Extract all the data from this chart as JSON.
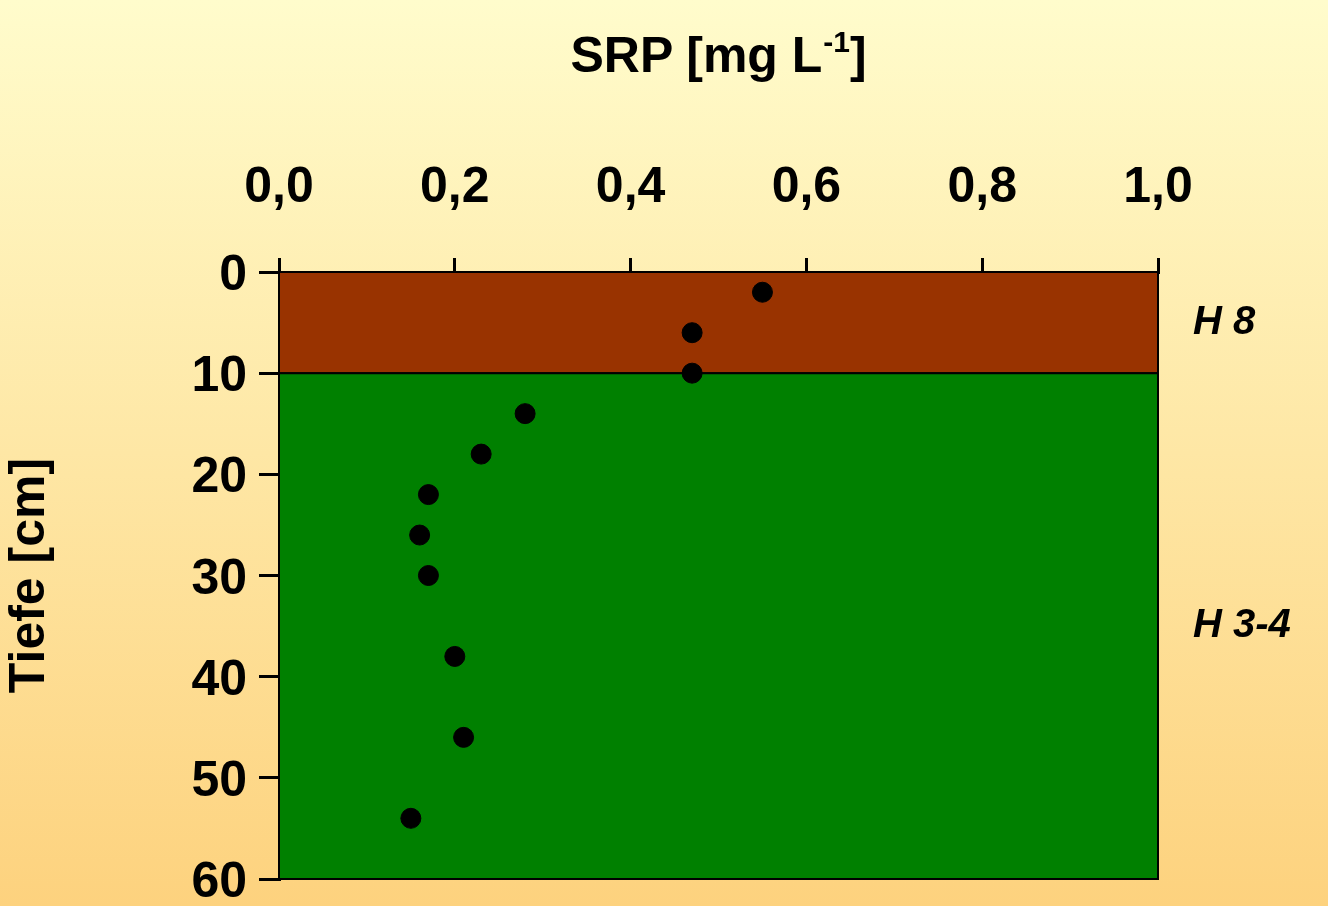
{
  "chart_data": {
    "type": "scatter",
    "xlabel": "SRP [mg L$^{-1}$]",
    "ylabel": "Tiefe [cm]",
    "xlim": [
      0,
      1
    ],
    "xticks": [
      {
        "value": 0,
        "label": "0,0"
      },
      {
        "value": 0.2,
        "label": "0,2"
      },
      {
        "value": 0.4,
        "label": "0,4"
      },
      {
        "value": 0.6,
        "label": "0,6"
      },
      {
        "value": 0.8,
        "label": "0,8"
      },
      {
        "value": 1,
        "label": "1,0"
      }
    ],
    "ylim": [
      60,
      0
    ],
    "yticks": [
      0,
      10,
      20,
      30,
      40,
      50,
      60
    ],
    "series": [
      {
        "color": "#000000",
        "x": [
          0.55,
          0.47,
          0.47,
          0.28,
          0.23,
          0.17,
          0.16,
          0.17,
          0.2,
          0.21,
          0.15
        ],
        "values": [
          2,
          6,
          10,
          14,
          18,
          22,
          26,
          30,
          38,
          46,
          54
        ]
      }
    ],
    "bands": [
      {
        "axis": "y",
        "from": 0,
        "to": 10,
        "label": "H 8",
        "color": "#993300"
      },
      {
        "axis": "y",
        "from": 10,
        "to": 60,
        "label": "H 3-4",
        "color": "#008000"
      }
    ],
    "marker": "circle",
    "grid": false,
    "legend": false
  }
}
